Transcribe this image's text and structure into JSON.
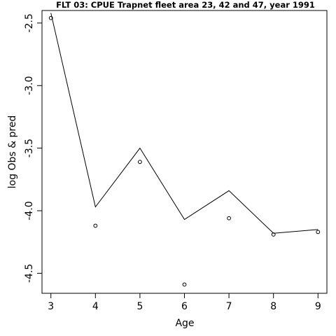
{
  "chart_data": {
    "type": "scatter",
    "title": "FLT 03: CPUE Trapnet fleet area 23, 42 and 47, year 1991",
    "xlabel": "Age",
    "ylabel": "log Obs & pred",
    "xlim": [
      2.8,
      9.2
    ],
    "ylim": [
      -4.66,
      -2.4
    ],
    "xticks": [
      3,
      4,
      5,
      6,
      7,
      8,
      9
    ],
    "yticks": [
      -2.5,
      -3.0,
      -3.5,
      -4.0,
      -4.5
    ],
    "ytick_labels": [
      "-2.5",
      "-3.0",
      "-3.5",
      "-4.0",
      "-4.5"
    ],
    "grid": false,
    "series": [
      {
        "style": "points",
        "x": [
          3,
          4,
          5,
          6,
          7,
          8,
          9
        ],
        "y": [
          -2.46,
          -4.12,
          -3.61,
          -4.59,
          -4.06,
          -4.19,
          -4.17
        ]
      },
      {
        "style": "line",
        "x": [
          3,
          4,
          5,
          6,
          7,
          8,
          9
        ],
        "y": [
          -2.42,
          -3.97,
          -3.5,
          -4.07,
          -3.84,
          -4.18,
          -4.15
        ]
      }
    ]
  }
}
